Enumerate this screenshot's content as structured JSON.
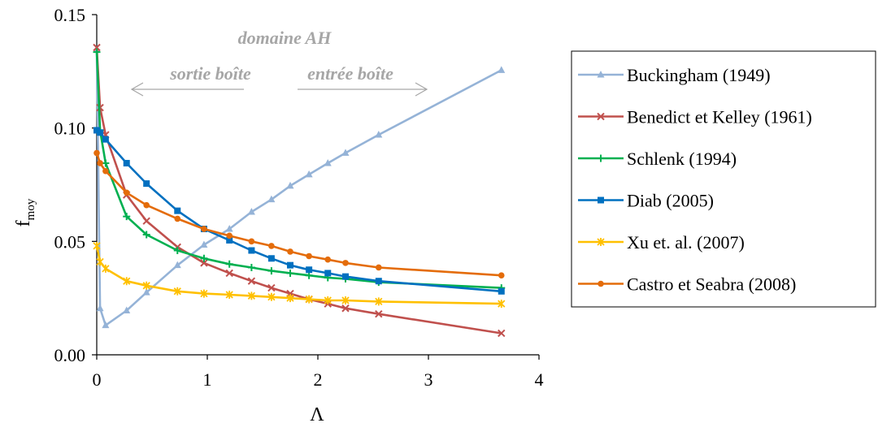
{
  "chart_data": {
    "type": "line",
    "xlabel": "Λ",
    "ylabel_main": "f",
    "ylabel_sub": "moy",
    "xlim": [
      0,
      4
    ],
    "ylim": [
      0,
      0.15
    ],
    "xticks": [
      0,
      1,
      2,
      3,
      4
    ],
    "xtick_labels": [
      "0",
      "1",
      "2",
      "3",
      "4"
    ],
    "yticks": [
      0,
      0.05,
      0.1,
      0.15
    ],
    "ytick_labels": [
      "0.00",
      "0.05",
      "0.10",
      "0.15"
    ],
    "grid": false,
    "legend_position": "right",
    "annotations": {
      "domain": "domaine AH",
      "left": "sortie boîte",
      "right": "entrée boîte"
    },
    "series": [
      {
        "name": "Buckingham (1949)",
        "color": "#95b3d7",
        "marker": "triangle",
        "x": [
          0.0,
          0.03,
          0.08,
          0.27,
          0.45,
          0.73,
          0.97,
          1.2,
          1.4,
          1.58,
          1.75,
          1.92,
          2.09,
          2.25,
          2.55,
          3.66
        ],
        "y": [
          0.1345,
          0.0205,
          0.013,
          0.0195,
          0.0275,
          0.0395,
          0.0485,
          0.0555,
          0.063,
          0.0685,
          0.0745,
          0.0795,
          0.0845,
          0.089,
          0.097,
          0.1255
        ]
      },
      {
        "name": "Benedict et Kelley (1961)",
        "color": "#c0504d",
        "marker": "x",
        "x": [
          0.0,
          0.03,
          0.08,
          0.27,
          0.45,
          0.73,
          0.97,
          1.2,
          1.4,
          1.58,
          1.75,
          1.92,
          2.09,
          2.25,
          2.55,
          3.66
        ],
        "y": [
          0.1355,
          0.109,
          0.097,
          0.0705,
          0.059,
          0.0475,
          0.0405,
          0.036,
          0.0325,
          0.0295,
          0.027,
          0.0245,
          0.0225,
          0.0205,
          0.018,
          0.0095
        ]
      },
      {
        "name": "Schlenk (1994)",
        "color": "#00b050",
        "marker": "plus",
        "x": [
          0.0,
          0.03,
          0.08,
          0.27,
          0.45,
          0.73,
          0.97,
          1.2,
          1.4,
          1.58,
          1.75,
          1.92,
          2.09,
          2.25,
          2.55,
          3.66
        ],
        "y": [
          0.1335,
          0.099,
          0.0845,
          0.061,
          0.053,
          0.046,
          0.0425,
          0.04,
          0.0385,
          0.037,
          0.036,
          0.035,
          0.034,
          0.0335,
          0.032,
          0.0295
        ]
      },
      {
        "name": "Diab (2005)",
        "color": "#0070c0",
        "marker": "square",
        "x": [
          0.0,
          0.03,
          0.08,
          0.27,
          0.45,
          0.73,
          0.97,
          1.2,
          1.4,
          1.58,
          1.75,
          1.92,
          2.09,
          2.25,
          2.55,
          3.66
        ],
        "y": [
          0.099,
          0.098,
          0.095,
          0.0845,
          0.0755,
          0.0635,
          0.0555,
          0.0505,
          0.046,
          0.0425,
          0.0395,
          0.0375,
          0.036,
          0.0345,
          0.0325,
          0.028
        ]
      },
      {
        "name": "Xu et. al. (2007)",
        "color": "#ffc000",
        "marker": "asterisk",
        "x": [
          0.0,
          0.03,
          0.08,
          0.27,
          0.45,
          0.73,
          0.97,
          1.2,
          1.4,
          1.58,
          1.75,
          1.92,
          2.09,
          2.25,
          2.55,
          3.66
        ],
        "y": [
          0.048,
          0.041,
          0.038,
          0.0325,
          0.0305,
          0.028,
          0.027,
          0.0265,
          0.026,
          0.0255,
          0.025,
          0.0245,
          0.024,
          0.024,
          0.0235,
          0.0225
        ]
      },
      {
        "name": "Castro et Seabra (2008)",
        "color": "#e46c0a",
        "marker": "circle",
        "x": [
          0.0,
          0.03,
          0.08,
          0.27,
          0.45,
          0.73,
          0.97,
          1.2,
          1.4,
          1.58,
          1.75,
          1.92,
          2.09,
          2.25,
          2.55,
          3.66
        ],
        "y": [
          0.089,
          0.0845,
          0.081,
          0.0715,
          0.066,
          0.06,
          0.0555,
          0.0525,
          0.05,
          0.048,
          0.0455,
          0.0435,
          0.042,
          0.0405,
          0.0385,
          0.035
        ]
      }
    ]
  }
}
